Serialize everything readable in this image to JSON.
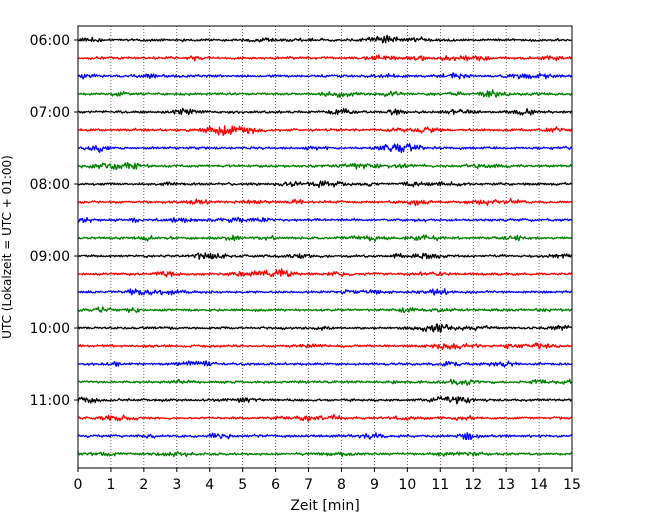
{
  "chart_data": {
    "type": "line",
    "title": "",
    "xlabel": "Zeit  [min]",
    "ylabel": "UTC (Lokalzeit = UTC + 01:00)",
    "xlim": [
      0,
      15
    ],
    "xticks": [
      0,
      1,
      2,
      3,
      4,
      5,
      6,
      7,
      8,
      9,
      10,
      11,
      12,
      13,
      14,
      15
    ],
    "x_grid": true,
    "y_grid": false,
    "legend": "none",
    "y_tick_labels": [
      "06:00",
      "07:00",
      "08:00",
      "09:00",
      "10:00",
      "11:00"
    ],
    "trace_minutes": 15,
    "trace_start_times": [
      "06:00",
      "06:15",
      "06:30",
      "06:45",
      "07:00",
      "07:15",
      "07:30",
      "07:45",
      "08:00",
      "08:15",
      "08:30",
      "08:45",
      "09:00",
      "09:15",
      "09:30",
      "09:45",
      "10:00",
      "10:15",
      "10:30",
      "10:45",
      "11:00",
      "11:15",
      "11:30",
      "11:45"
    ],
    "trace_colors": [
      "#000000",
      "#ff0000",
      "#0000ff",
      "#007f00"
    ]
  }
}
